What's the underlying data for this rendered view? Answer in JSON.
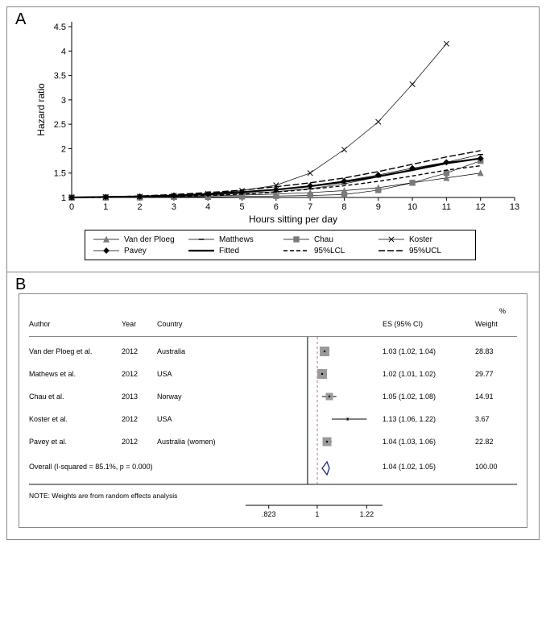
{
  "panelA": {
    "label": "A",
    "type": "line-scatter",
    "background_color": "#ffffff",
    "plot_bg": "#ffffff",
    "axis_color": "#000000",
    "x_title": "Hours sitting per day",
    "y_title": "Hazard ratio",
    "title_fontsize": 12,
    "tick_fontsize": 11,
    "xlim": [
      0,
      13
    ],
    "ylim": [
      1,
      4.6
    ],
    "xticks": [
      0,
      1,
      2,
      3,
      4,
      5,
      6,
      7,
      8,
      9,
      10,
      11,
      12,
      13
    ],
    "yticks": [
      1,
      1.5,
      2,
      2.5,
      3,
      3.5,
      4,
      4.5
    ],
    "series": [
      {
        "name": "Van der Ploeg",
        "marker": "triangle",
        "marker_fill": "#7a7a7a",
        "line_color": "#000000",
        "line_width": 0.7,
        "dash": "none",
        "points": [
          [
            0,
            1.0
          ],
          [
            1,
            1.0
          ],
          [
            2,
            1.01
          ],
          [
            3,
            1.02
          ],
          [
            4,
            1.03
          ],
          [
            5,
            1.05
          ],
          [
            6,
            1.07
          ],
          [
            7,
            1.1
          ],
          [
            8,
            1.14
          ],
          [
            9,
            1.2
          ],
          [
            10,
            1.3
          ],
          [
            11,
            1.4
          ],
          [
            12,
            1.5
          ]
        ]
      },
      {
        "name": "Matthews",
        "marker": "hline",
        "marker_fill": "#000000",
        "line_color": "#000000",
        "line_width": 0.7,
        "dash": "none",
        "points": [
          [
            0,
            1.0
          ],
          [
            1,
            1.01
          ],
          [
            2,
            1.02
          ],
          [
            3,
            1.03
          ],
          [
            4,
            1.05
          ],
          [
            5,
            1.08
          ],
          [
            6,
            1.12
          ],
          [
            7,
            1.18
          ],
          [
            8,
            1.28
          ],
          [
            9,
            1.42
          ],
          [
            10,
            1.58
          ],
          [
            11,
            1.72
          ],
          [
            12,
            1.88
          ]
        ]
      },
      {
        "name": "Chau",
        "marker": "square",
        "marker_fill": "#7a7a7a",
        "line_color": "#000000",
        "line_width": 0.7,
        "dash": "none",
        "points": [
          [
            0,
            1.0
          ],
          [
            1,
            1.0
          ],
          [
            2,
            1.0
          ],
          [
            3,
            1.01
          ],
          [
            4,
            1.01
          ],
          [
            5,
            1.02
          ],
          [
            6,
            1.03
          ],
          [
            7,
            1.04
          ],
          [
            8,
            1.06
          ],
          [
            9,
            1.15
          ],
          [
            10,
            1.3
          ],
          [
            11,
            1.5
          ],
          [
            12,
            1.75
          ]
        ]
      },
      {
        "name": "Koster",
        "marker": "x",
        "marker_fill": "#000000",
        "line_color": "#000000",
        "line_width": 0.7,
        "dash": "none",
        "points": [
          [
            0,
            1.0
          ],
          [
            1,
            1.01
          ],
          [
            2,
            1.02
          ],
          [
            3,
            1.04
          ],
          [
            4,
            1.08
          ],
          [
            5,
            1.14
          ],
          [
            6,
            1.25
          ],
          [
            7,
            1.5
          ],
          [
            8,
            1.98
          ],
          [
            9,
            2.55
          ],
          [
            10,
            3.32
          ],
          [
            11,
            4.15
          ]
        ]
      },
      {
        "name": "Pavey",
        "marker": "diamond",
        "marker_fill": "#000000",
        "line_color": "#000000",
        "line_width": 0.7,
        "dash": "none",
        "points": [
          [
            0,
            1.0
          ],
          [
            1,
            1.01
          ],
          [
            2,
            1.02
          ],
          [
            3,
            1.04
          ],
          [
            4,
            1.07
          ],
          [
            5,
            1.11
          ],
          [
            6,
            1.16
          ],
          [
            7,
            1.24
          ],
          [
            8,
            1.34
          ],
          [
            9,
            1.46
          ],
          [
            10,
            1.6
          ],
          [
            11,
            1.72
          ],
          [
            12,
            1.8
          ]
        ]
      },
      {
        "name": "Fitted",
        "marker": "none",
        "marker_fill": "#000000",
        "line_color": "#000000",
        "line_width": 2.2,
        "dash": "none",
        "points": [
          [
            0,
            1.0
          ],
          [
            1,
            1.01
          ],
          [
            2,
            1.02
          ],
          [
            3,
            1.04
          ],
          [
            4,
            1.07
          ],
          [
            5,
            1.11
          ],
          [
            6,
            1.16
          ],
          [
            7,
            1.23
          ],
          [
            8,
            1.32
          ],
          [
            9,
            1.43
          ],
          [
            10,
            1.56
          ],
          [
            11,
            1.7
          ],
          [
            12,
            1.8
          ]
        ]
      },
      {
        "name": "95%LCL",
        "marker": "none",
        "marker_fill": "#000000",
        "line_color": "#000000",
        "line_width": 1.4,
        "dash": "5,3",
        "points": [
          [
            0,
            1.0
          ],
          [
            1,
            1.0
          ],
          [
            2,
            1.01
          ],
          [
            3,
            1.02
          ],
          [
            4,
            1.04
          ],
          [
            5,
            1.07
          ],
          [
            6,
            1.11
          ],
          [
            7,
            1.17
          ],
          [
            8,
            1.24
          ],
          [
            9,
            1.33
          ],
          [
            10,
            1.44
          ],
          [
            11,
            1.56
          ],
          [
            12,
            1.65
          ]
        ]
      },
      {
        "name": "95%UCL",
        "marker": "none",
        "marker_fill": "#000000",
        "line_color": "#000000",
        "line_width": 1.4,
        "dash": "8,3",
        "points": [
          [
            0,
            1.0
          ],
          [
            1,
            1.01
          ],
          [
            2,
            1.03
          ],
          [
            3,
            1.06
          ],
          [
            4,
            1.1
          ],
          [
            5,
            1.15
          ],
          [
            6,
            1.22
          ],
          [
            7,
            1.3
          ],
          [
            8,
            1.4
          ],
          [
            9,
            1.53
          ],
          [
            10,
            1.68
          ],
          [
            11,
            1.83
          ],
          [
            12,
            1.96
          ]
        ]
      }
    ],
    "legend": {
      "border_color": "#000000",
      "rows": [
        [
          "Van der Ploeg",
          "Matthews",
          "Chau",
          "Koster"
        ],
        [
          "Pavey",
          "Fitted",
          "95%LCL",
          "95%UCL"
        ]
      ]
    }
  },
  "panelB": {
    "label": "B",
    "type": "forest",
    "background_color": "#ffffff",
    "headers": {
      "author": "Author",
      "year": "Year",
      "country": "Country",
      "es": "ES (95% CI)",
      "weight": "Weight",
      "pct": "%"
    },
    "x_scale": {
      "min": 0.75,
      "max": 1.3,
      "ref": 1.0,
      "overall_ref": 1.04,
      "ticks": [
        0.823,
        1,
        1.22
      ],
      "log": true
    },
    "colors": {
      "box_fill": "#9a9a9a",
      "line": "#000000",
      "ref_line": "#000000",
      "overall_line": "#c27070",
      "diamond_stroke": "#1a2a80",
      "diamond_fill": "#ffffff"
    },
    "rows": [
      {
        "author": "Van der Ploeg et al.",
        "year": "2012",
        "country": "Australia",
        "es": 1.03,
        "lcl": 1.02,
        "ucl": 1.04,
        "es_text": "1.03 (1.02, 1.04)",
        "weight": "28.83",
        "box_size": 12
      },
      {
        "author": "Mathews et al.",
        "year": "2012",
        "country": "USA",
        "es": 1.02,
        "lcl": 1.01,
        "ucl": 1.02,
        "es_text": "1.02 (1.01, 1.02)",
        "weight": "29.77",
        "box_size": 12
      },
      {
        "author": "Chau et al.",
        "year": "2013",
        "country": "Norway",
        "es": 1.05,
        "lcl": 1.02,
        "ucl": 1.08,
        "es_text": "1.05 (1.02, 1.08)",
        "weight": "14.91",
        "box_size": 9
      },
      {
        "author": "Koster et al.",
        "year": "2012",
        "country": "USA",
        "es": 1.13,
        "lcl": 1.06,
        "ucl": 1.22,
        "es_text": "1.13 (1.06, 1.22)",
        "weight": "3.67",
        "box_size": 4
      },
      {
        "author": "Pavey et al.",
        "year": "2012",
        "country": "Australia (women)",
        "es": 1.04,
        "lcl": 1.03,
        "ucl": 1.06,
        "es_text": "1.04 (1.03, 1.06)",
        "weight": "22.82",
        "box_size": 11
      }
    ],
    "overall": {
      "label": "Overall  (I-squared = 85.1%, p = 0.000)",
      "es": 1.04,
      "lcl": 1.02,
      "ucl": 1.05,
      "es_text": "1.04 (1.02, 1.05)",
      "weight": "100.00"
    },
    "note": "NOTE: Weights are from random effects analysis"
  }
}
